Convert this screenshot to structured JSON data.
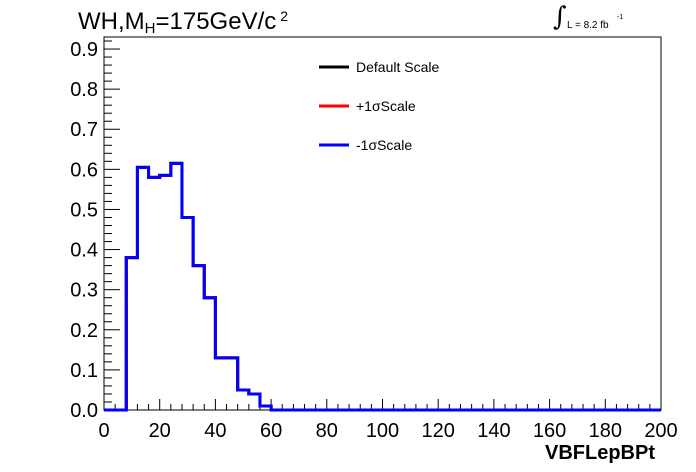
{
  "title": {
    "prefix": "WH,M",
    "subscript": "H",
    "suffix": "=175GeV/c",
    "superscript": "2"
  },
  "luminosity": {
    "integral_symbol": "∫",
    "text": "L = 8.2 fb",
    "superscript": "-1"
  },
  "colors": {
    "default": "#000000",
    "plus": "#ff0000",
    "minus": "#0000ff",
    "frame": "#000000",
    "background": "#ffffff"
  },
  "chart_data": {
    "type": "histogram",
    "xlabel": "VBFLepBPt",
    "ylabel": "",
    "xlim": [
      0,
      200
    ],
    "ylim": [
      0,
      0.93
    ],
    "bin_width": 4,
    "x_ticks": [
      0,
      20,
      40,
      60,
      80,
      100,
      120,
      140,
      160,
      180,
      200
    ],
    "y_ticks": [
      "0.0",
      "0.1",
      "0.2",
      "0.3",
      "0.4",
      "0.5",
      "0.6",
      "0.7",
      "0.8",
      "0.9"
    ],
    "grid": false,
    "legend_position": "top-center",
    "series": [
      {
        "name": "Default Scale",
        "color": "#000000",
        "values": [
          0,
          0,
          0.38,
          0.605,
          0.58,
          0.585,
          0.615,
          0.48,
          0.36,
          0.28,
          0.13,
          0.13,
          0.05,
          0.04,
          0.01,
          0,
          0,
          0,
          0,
          0,
          0,
          0,
          0,
          0,
          0,
          0,
          0,
          0,
          0,
          0,
          0,
          0,
          0,
          0,
          0,
          0,
          0,
          0,
          0,
          0,
          0,
          0,
          0,
          0,
          0,
          0,
          0,
          0,
          0,
          0
        ]
      },
      {
        "name": "+1σScale",
        "color": "#ff0000",
        "values": [
          0,
          0,
          0.38,
          0.605,
          0.58,
          0.585,
          0.615,
          0.48,
          0.36,
          0.28,
          0.13,
          0.13,
          0.05,
          0.04,
          0.01,
          0,
          0,
          0,
          0,
          0,
          0,
          0,
          0,
          0,
          0,
          0,
          0,
          0,
          0,
          0,
          0,
          0,
          0,
          0,
          0,
          0,
          0,
          0,
          0,
          0,
          0,
          0,
          0,
          0,
          0,
          0,
          0,
          0,
          0,
          0
        ]
      },
      {
        "name": "-1σScale",
        "color": "#0000ff",
        "values": [
          0,
          0,
          0.38,
          0.605,
          0.58,
          0.585,
          0.615,
          0.48,
          0.36,
          0.28,
          0.13,
          0.13,
          0.05,
          0.04,
          0.01,
          0,
          0,
          0,
          0,
          0,
          0,
          0,
          0,
          0,
          0,
          0,
          0,
          0,
          0,
          0,
          0,
          0,
          0,
          0,
          0,
          0,
          0,
          0,
          0,
          0,
          0,
          0,
          0,
          0,
          0,
          0,
          0,
          0,
          0,
          0
        ]
      }
    ]
  }
}
